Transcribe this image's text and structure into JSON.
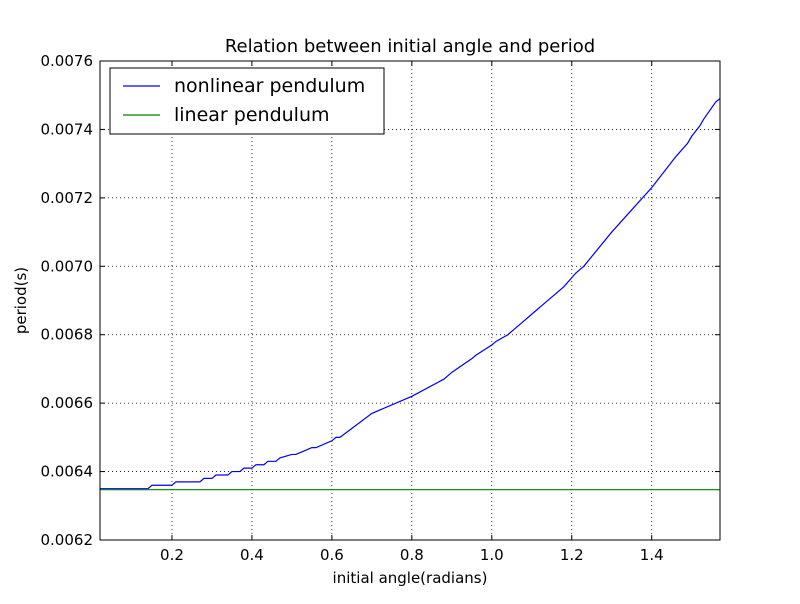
{
  "chart_data": {
    "type": "line",
    "title": "Relation between initial angle and period",
    "xlabel": "initial angle(radians)",
    "ylabel": "period(s)",
    "xlim": [
      0.02,
      1.5708
    ],
    "ylim": [
      0.0062,
      0.0076
    ],
    "x_ticks": [
      {
        "value": 0.2,
        "label": "0.2"
      },
      {
        "value": 0.4,
        "label": "0.4"
      },
      {
        "value": 0.6,
        "label": "0.6"
      },
      {
        "value": 0.8,
        "label": "0.8"
      },
      {
        "value": 1.0,
        "label": "1.0"
      },
      {
        "value": 1.2,
        "label": "1.2"
      },
      {
        "value": 1.4,
        "label": "1.4"
      }
    ],
    "y_ticks": [
      {
        "value": 0.0062,
        "label": "0.0062"
      },
      {
        "value": 0.0064,
        "label": "0.0064"
      },
      {
        "value": 0.0066,
        "label": "0.0066"
      },
      {
        "value": 0.0068,
        "label": "0.0068"
      },
      {
        "value": 0.007,
        "label": "0.0070"
      },
      {
        "value": 0.0072,
        "label": "0.0072"
      },
      {
        "value": 0.0074,
        "label": "0.0074"
      },
      {
        "value": 0.0076,
        "label": "0.0076"
      }
    ],
    "grid": true,
    "legend_position": "top-left",
    "series": [
      {
        "name": "nonlinear pendulum",
        "color": "#0000ff",
        "x": [
          0.02,
          0.14,
          0.15,
          0.2,
          0.21,
          0.27,
          0.28,
          0.3,
          0.31,
          0.34,
          0.35,
          0.37,
          0.38,
          0.4,
          0.41,
          0.43,
          0.44,
          0.46,
          0.47,
          0.5,
          0.51,
          0.53,
          0.55,
          0.56,
          0.6,
          0.61,
          0.62,
          0.7,
          0.8,
          0.88,
          0.9,
          0.95,
          0.96,
          1.0,
          1.01,
          1.04,
          1.05,
          1.08,
          1.09,
          1.11,
          1.12,
          1.15,
          1.16,
          1.18,
          1.21,
          1.22,
          1.23,
          1.3,
          1.4,
          1.42,
          1.46,
          1.49,
          1.5,
          1.52,
          1.53,
          1.56,
          1.5708
        ],
        "y": [
          0.00635,
          0.00635,
          0.00636,
          0.00636,
          0.00637,
          0.00637,
          0.00638,
          0.00638,
          0.00639,
          0.00639,
          0.0064,
          0.0064,
          0.00641,
          0.00641,
          0.00642,
          0.00642,
          0.00643,
          0.00643,
          0.00644,
          0.00645,
          0.00645,
          0.00646,
          0.00647,
          0.00647,
          0.00649,
          0.0065,
          0.0065,
          0.00657,
          0.00662,
          0.00667,
          0.00669,
          0.00673,
          0.00674,
          0.00677,
          0.00678,
          0.0068,
          0.00681,
          0.00684,
          0.00685,
          0.00687,
          0.00688,
          0.00691,
          0.00692,
          0.00694,
          0.00698,
          0.00699,
          0.007,
          0.0071,
          0.00723,
          0.00726,
          0.00732,
          0.00736,
          0.00738,
          0.00741,
          0.00743,
          0.00748,
          0.00749
        ]
      },
      {
        "name": "linear pendulum",
        "color": "#008000",
        "x": [
          0.02,
          1.5708
        ],
        "y": [
          0.006347,
          0.006347
        ]
      }
    ]
  }
}
